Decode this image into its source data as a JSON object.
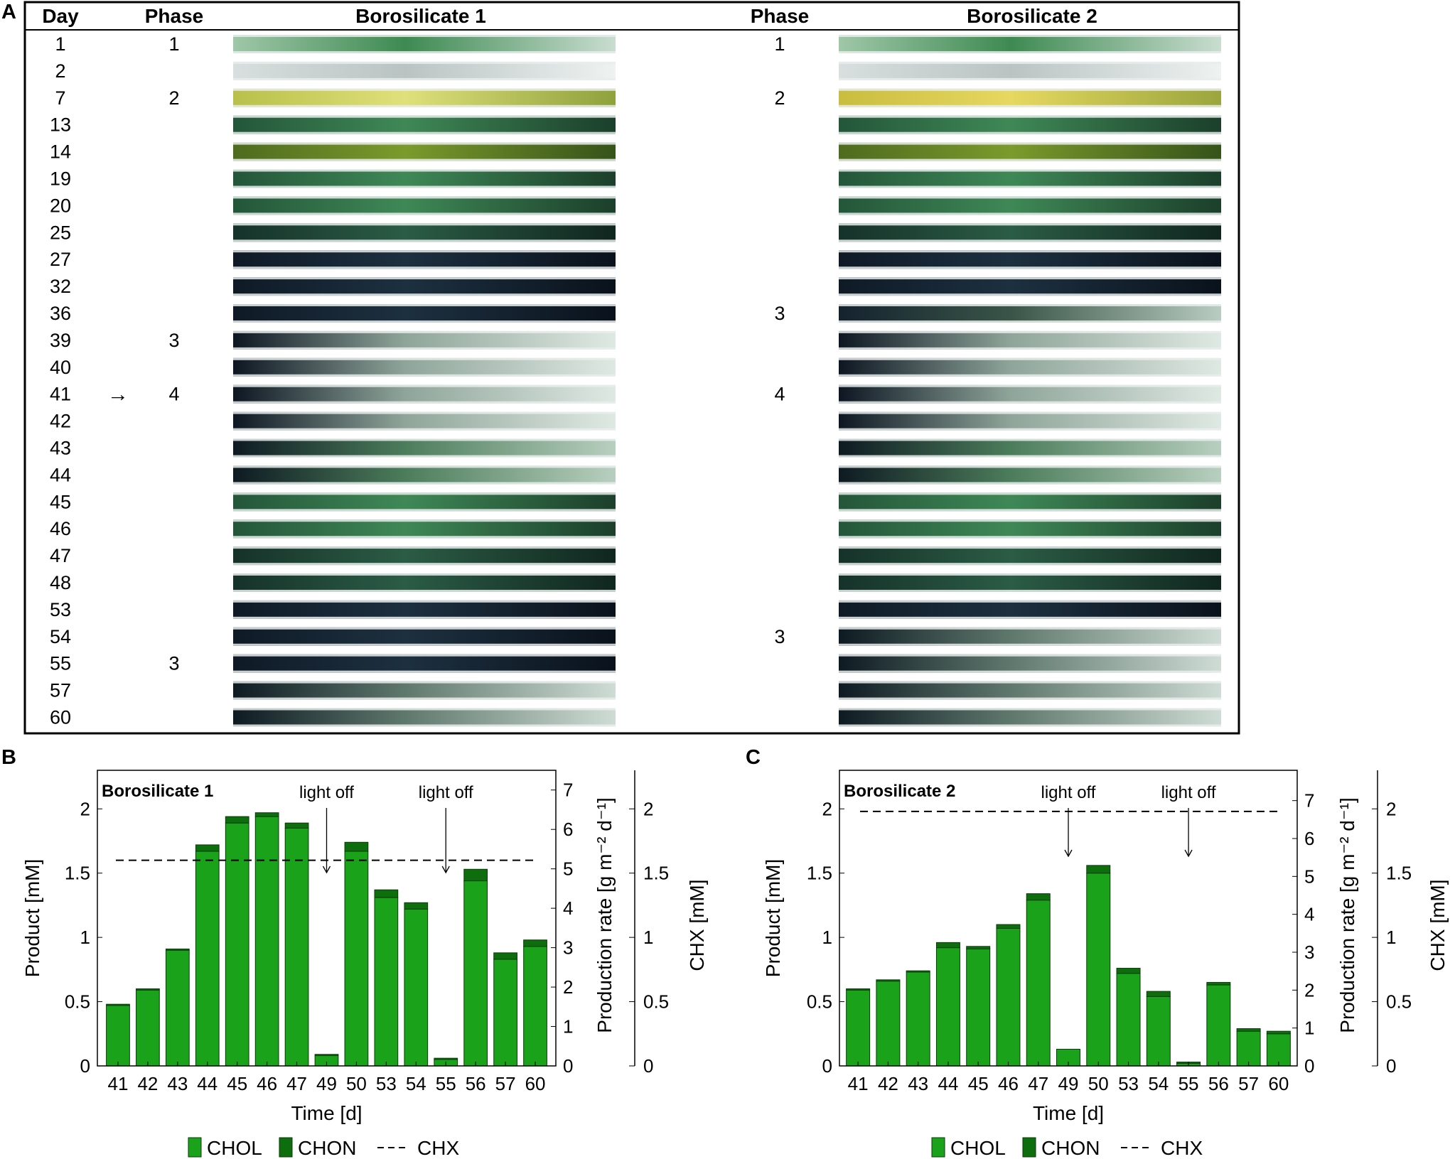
{
  "panel_a": {
    "label": "A",
    "headers": {
      "day": "Day",
      "phase1": "Phase",
      "boro1": "Borosilicate 1",
      "phase2": "Phase",
      "boro2": "Borosilicate 2"
    },
    "arrow": "→",
    "arrow_day": "41",
    "days": [
      "1",
      "2",
      "7",
      "13",
      "14",
      "19",
      "20",
      "25",
      "27",
      "32",
      "36",
      "39",
      "40",
      "41",
      "42",
      "43",
      "44",
      "45",
      "46",
      "47",
      "48",
      "53",
      "54",
      "55",
      "57",
      "60"
    ],
    "phase_b1": {
      "1": "1",
      "7": "2",
      "39": "3",
      "41": "4",
      "55": "3"
    },
    "phase_b2": {
      "1": "1",
      "7": "2",
      "36": "3",
      "41": "4",
      "54": "3"
    },
    "photo_tones": {
      "1": {
        "b1": "light-green",
        "b2": "light-green"
      },
      "2": {
        "b1": "clear",
        "b2": "clear"
      },
      "7": {
        "b1": "yellow-green",
        "b2": "yellow"
      },
      "13": {
        "b1": "green",
        "b2": "green"
      },
      "14": {
        "b1": "olive-green",
        "b2": "olive-green"
      },
      "19": {
        "b1": "green",
        "b2": "green"
      },
      "20": {
        "b1": "green",
        "b2": "green"
      },
      "25": {
        "b1": "dark-green",
        "b2": "dark-green"
      },
      "27": {
        "b1": "dark",
        "b2": "dark"
      },
      "32": {
        "b1": "dark",
        "b2": "dark"
      },
      "36": {
        "b1": "dark",
        "b2": "dark-fading"
      },
      "39": {
        "b1": "bleached",
        "b2": "bleached"
      },
      "40": {
        "b1": "bleached",
        "b2": "bleached"
      },
      "41": {
        "b1": "bleached",
        "b2": "bleached"
      },
      "42": {
        "b1": "bleached",
        "b2": "bleached"
      },
      "43": {
        "b1": "regrowing",
        "b2": "regrowing"
      },
      "44": {
        "b1": "regrowing",
        "b2": "regrowing"
      },
      "45": {
        "b1": "green",
        "b2": "green"
      },
      "46": {
        "b1": "green",
        "b2": "green"
      },
      "47": {
        "b1": "dark-green",
        "b2": "dark-green"
      },
      "48": {
        "b1": "dark-green",
        "b2": "dark-green"
      },
      "53": {
        "b1": "dark",
        "b2": "dark"
      },
      "54": {
        "b1": "dark",
        "b2": "bleaching"
      },
      "55": {
        "b1": "dark",
        "b2": "bleaching"
      },
      "57": {
        "b1": "bleaching",
        "b2": "bleaching"
      },
      "60": {
        "b1": "bleaching",
        "b2": "bleaching"
      }
    }
  },
  "chart_data": [
    {
      "panel": "B",
      "type": "bar",
      "stacked": true,
      "title": "Borosilicate 1",
      "xlabel": "Time [d]",
      "ylabel": "Product [mM]",
      "y2label": "Production rate [g m⁻² d⁻¹]",
      "y3label": "CHX [mM]",
      "ylim": [
        0,
        2.3
      ],
      "y2lim": [
        0,
        7.5
      ],
      "y3lim": [
        0,
        2.3
      ],
      "yticks": [
        "0",
        "0.5",
        "1",
        "1.5",
        "2"
      ],
      "y2ticks": [
        "0",
        "1",
        "2",
        "3",
        "4",
        "5",
        "6",
        "7"
      ],
      "y3ticks": [
        "0",
        "0.5",
        "1",
        "1.5",
        "2"
      ],
      "categories": [
        "41",
        "42",
        "43",
        "44",
        "45",
        "46",
        "47",
        "49",
        "50",
        "53",
        "54",
        "55",
        "56",
        "57",
        "60"
      ],
      "series": [
        {
          "name": "CHOL",
          "color": "#1aa31a",
          "values": [
            0.47,
            0.59,
            0.9,
            1.67,
            1.89,
            1.94,
            1.85,
            0.08,
            1.67,
            1.31,
            1.22,
            0.05,
            1.44,
            0.83,
            0.93
          ]
        },
        {
          "name": "CHON",
          "color": "#0e6e0e",
          "values": [
            0.01,
            0.01,
            0.01,
            0.05,
            0.05,
            0.03,
            0.04,
            0.01,
            0.07,
            0.06,
            0.05,
            0.01,
            0.09,
            0.05,
            0.05
          ]
        }
      ],
      "chx": {
        "name": "CHX",
        "value": 1.6
      },
      "annotations": [
        {
          "text": "light off",
          "category": "49"
        },
        {
          "text": "light off",
          "category": "55"
        }
      ],
      "legend": [
        "CHOL",
        "CHON",
        "CHX"
      ],
      "legend_position": "bottom"
    },
    {
      "panel": "C",
      "type": "bar",
      "stacked": true,
      "title": "Borosilicate 2",
      "xlabel": "Time [d]",
      "ylabel": "Product [mM]",
      "y2label": "Production rate [g m⁻² d⁻¹]",
      "y3label": "CHX [mM]",
      "ylim": [
        0,
        2.3
      ],
      "y2lim": [
        0,
        7.8
      ],
      "y3lim": [
        0,
        2.3
      ],
      "yticks": [
        "0",
        "0.5",
        "1",
        "1.5",
        "2"
      ],
      "y2ticks": [
        "0",
        "1",
        "2",
        "3",
        "4",
        "5",
        "6",
        "7"
      ],
      "y3ticks": [
        "0",
        "0.5",
        "1",
        "1.5",
        "2"
      ],
      "categories": [
        "41",
        "42",
        "43",
        "44",
        "45",
        "46",
        "47",
        "49",
        "50",
        "53",
        "54",
        "55",
        "56",
        "57",
        "60"
      ],
      "series": [
        {
          "name": "CHOL",
          "color": "#1aa31a",
          "values": [
            0.59,
            0.66,
            0.73,
            0.92,
            0.91,
            1.07,
            1.29,
            0.13,
            1.5,
            0.72,
            0.54,
            0.02,
            0.63,
            0.27,
            0.25
          ]
        },
        {
          "name": "CHON",
          "color": "#0e6e0e",
          "values": [
            0.01,
            0.01,
            0.01,
            0.04,
            0.02,
            0.03,
            0.05,
            0.0,
            0.06,
            0.04,
            0.04,
            0.01,
            0.02,
            0.02,
            0.02
          ]
        }
      ],
      "chx": {
        "name": "CHX",
        "value": 1.98
      },
      "annotations": [
        {
          "text": "light off",
          "category": "49"
        },
        {
          "text": "light off",
          "category": "55"
        }
      ],
      "legend": [
        "CHOL",
        "CHON",
        "CHX"
      ],
      "legend_position": "bottom"
    }
  ],
  "panel_b": {
    "label": "B"
  },
  "panel_c": {
    "label": "C"
  }
}
